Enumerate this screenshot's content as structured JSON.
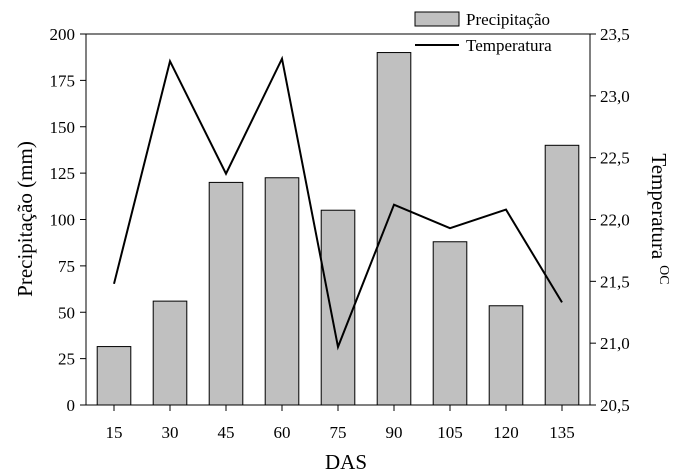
{
  "chart_data": {
    "type": "bar+line",
    "title": "",
    "xlabel": "DAS",
    "ylabel_left": "Precipitação (mm)",
    "ylabel_right": "Temperatura",
    "ylabel_right_unit": "OC",
    "categories": [
      "15",
      "30",
      "45",
      "60",
      "75",
      "90",
      "105",
      "120",
      "135"
    ],
    "y_left_ticks": [
      "0",
      "25",
      "50",
      "75",
      "100",
      "125",
      "150",
      "175",
      "200"
    ],
    "y_right_ticks": [
      "20,5",
      "21,0",
      "21,5",
      "22,0",
      "22,5",
      "23,0",
      "23,5"
    ],
    "ylim_left": [
      0,
      200
    ],
    "ylim_right": [
      20.5,
      23.5
    ],
    "grid": false,
    "legend_position": "top-right",
    "series": [
      {
        "name": "Precipitação",
        "type": "bar",
        "axis": "left",
        "color": "#c0c0c0",
        "values": [
          31.5,
          56,
          120,
          122.5,
          105,
          190,
          88,
          53.5,
          140
        ]
      },
      {
        "name": "Temperatura",
        "type": "line",
        "axis": "right",
        "color": "#000000",
        "values": [
          21.48,
          23.28,
          22.37,
          23.3,
          20.97,
          22.12,
          21.93,
          22.08,
          21.33
        ]
      }
    ]
  }
}
